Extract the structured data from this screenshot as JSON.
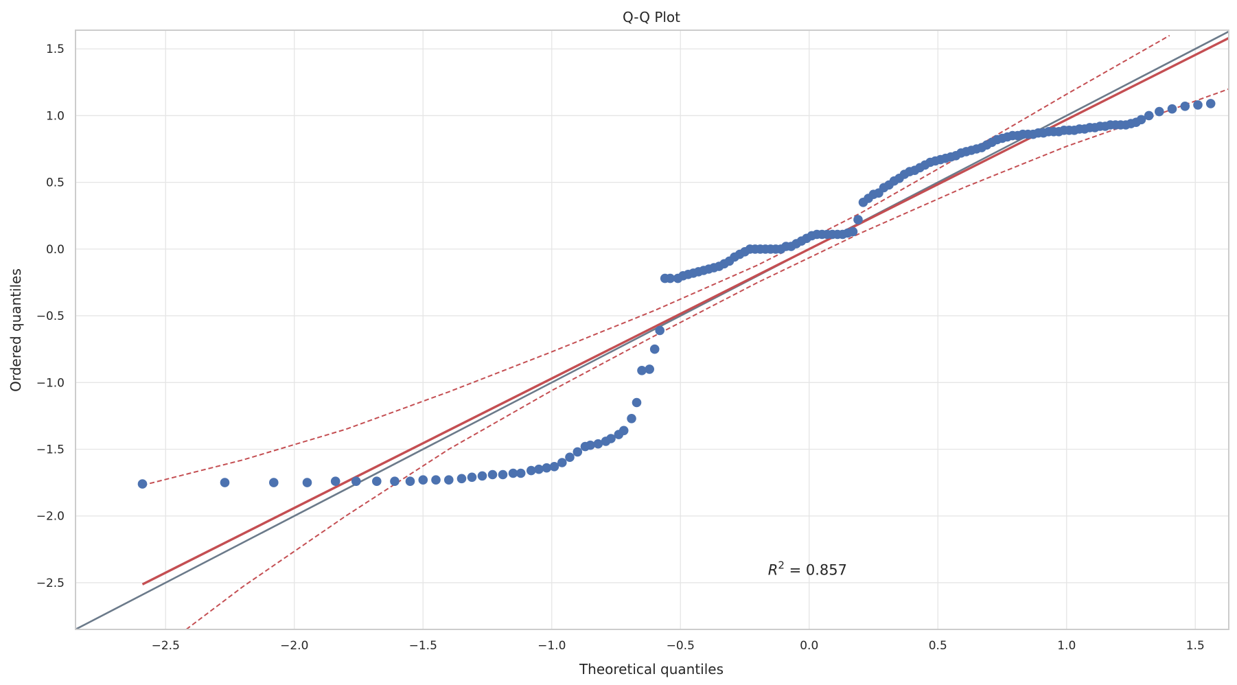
{
  "chart_data": {
    "type": "scatter",
    "title": "Q-Q Plot",
    "xlabel": "Theoretical quantiles",
    "ylabel": "Ordered quantiles",
    "xlim": [
      -2.85,
      1.63
    ],
    "ylim": [
      -2.85,
      1.64
    ],
    "x_ticks": [
      -2.5,
      -2.0,
      -1.5,
      -1.0,
      -0.5,
      0.0,
      0.5,
      1.0,
      1.5
    ],
    "x_tick_labels": [
      "−2.5",
      "−2.0",
      "−1.5",
      "−1.0",
      "−0.5",
      "0.0",
      "0.5",
      "1.0",
      "1.5"
    ],
    "y_ticks": [
      -2.5,
      -2.0,
      -1.5,
      -1.0,
      -0.5,
      0.0,
      0.5,
      1.0,
      1.5
    ],
    "y_tick_labels": [
      "−2.5",
      "−2.0",
      "−1.5",
      "−1.0",
      "−0.5",
      "0.0",
      "0.5",
      "1.0",
      "1.5"
    ],
    "grid": true,
    "annotation": {
      "label": "R",
      "sup": "2",
      "text": " = 0.857",
      "x": -0.16,
      "y": -2.4
    },
    "reference_line": {
      "slope": 1.0,
      "intercept": 0.0,
      "color": "#6b7a8a"
    },
    "fit_line": {
      "slope": 0.97,
      "intercept": 0.0,
      "x_range": [
        -2.59,
        1.63
      ],
      "color": "#c44e52"
    },
    "confidence_band": {
      "color": "#c44e52",
      "upper": [
        [
          -2.59,
          -1.77
        ],
        [
          -2.2,
          -1.58
        ],
        [
          -1.8,
          -1.35
        ],
        [
          -1.4,
          -1.07
        ],
        [
          -1.0,
          -0.77
        ],
        [
          -0.6,
          -0.46
        ],
        [
          -0.2,
          -0.12
        ],
        [
          0.2,
          0.27
        ],
        [
          0.6,
          0.71
        ],
        [
          1.0,
          1.16
        ],
        [
          1.4,
          1.6
        ]
      ],
      "lower": [
        [
          -2.42,
          -2.85
        ],
        [
          -2.2,
          -2.53
        ],
        [
          -1.8,
          -2.0
        ],
        [
          -1.4,
          -1.5
        ],
        [
          -1.0,
          -1.06
        ],
        [
          -0.6,
          -0.65
        ],
        [
          -0.2,
          -0.25
        ],
        [
          0.2,
          0.12
        ],
        [
          0.6,
          0.46
        ],
        [
          1.0,
          0.77
        ],
        [
          1.4,
          1.04
        ],
        [
          1.63,
          1.2
        ]
      ]
    },
    "series": [
      {
        "color": "#4c72b0",
        "points": [
          [
            -2.59,
            -1.76
          ],
          [
            -2.27,
            -1.75
          ],
          [
            -2.08,
            -1.75
          ],
          [
            -1.95,
            -1.75
          ],
          [
            -1.84,
            -1.74
          ],
          [
            -1.76,
            -1.74
          ],
          [
            -1.68,
            -1.74
          ],
          [
            -1.61,
            -1.74
          ],
          [
            -1.55,
            -1.74
          ],
          [
            -1.5,
            -1.73
          ],
          [
            -1.45,
            -1.73
          ],
          [
            -1.4,
            -1.73
          ],
          [
            -1.35,
            -1.72
          ],
          [
            -1.31,
            -1.71
          ],
          [
            -1.27,
            -1.7
          ],
          [
            -1.23,
            -1.69
          ],
          [
            -1.19,
            -1.69
          ],
          [
            -1.15,
            -1.68
          ],
          [
            -1.12,
            -1.68
          ],
          [
            -1.08,
            -1.66
          ],
          [
            -1.05,
            -1.65
          ],
          [
            -1.02,
            -1.64
          ],
          [
            -0.99,
            -1.63
          ],
          [
            -0.96,
            -1.6
          ],
          [
            -0.93,
            -1.56
          ],
          [
            -0.9,
            -1.52
          ],
          [
            -0.87,
            -1.48
          ],
          [
            -0.85,
            -1.47
          ],
          [
            -0.82,
            -1.46
          ],
          [
            -0.79,
            -1.44
          ],
          [
            -0.77,
            -1.42
          ],
          [
            -0.74,
            -1.39
          ],
          [
            -0.72,
            -1.36
          ],
          [
            -0.69,
            -1.27
          ],
          [
            -0.67,
            -1.15
          ],
          [
            -0.65,
            -0.91
          ],
          [
            -0.62,
            -0.9
          ],
          [
            -0.6,
            -0.75
          ],
          [
            -0.58,
            -0.61
          ],
          [
            -0.56,
            -0.22
          ],
          [
            -0.54,
            -0.22
          ],
          [
            -0.51,
            -0.22
          ],
          [
            -0.49,
            -0.2
          ],
          [
            -0.47,
            -0.19
          ],
          [
            -0.45,
            -0.18
          ],
          [
            -0.43,
            -0.17
          ],
          [
            -0.41,
            -0.16
          ],
          [
            -0.39,
            -0.15
          ],
          [
            -0.37,
            -0.14
          ],
          [
            -0.35,
            -0.13
          ],
          [
            -0.33,
            -0.11
          ],
          [
            -0.31,
            -0.09
          ],
          [
            -0.29,
            -0.06
          ],
          [
            -0.27,
            -0.04
          ],
          [
            -0.25,
            -0.02
          ],
          [
            -0.23,
            0.0
          ],
          [
            -0.21,
            0.0
          ],
          [
            -0.19,
            0.0
          ],
          [
            -0.17,
            0.0
          ],
          [
            -0.15,
            0.0
          ],
          [
            -0.13,
            0.0
          ],
          [
            -0.11,
            0.0
          ],
          [
            -0.09,
            0.02
          ],
          [
            -0.07,
            0.02
          ],
          [
            -0.05,
            0.04
          ],
          [
            -0.03,
            0.06
          ],
          [
            -0.01,
            0.08
          ],
          [
            0.01,
            0.1
          ],
          [
            0.03,
            0.11
          ],
          [
            0.05,
            0.11
          ],
          [
            0.07,
            0.11
          ],
          [
            0.09,
            0.11
          ],
          [
            0.11,
            0.11
          ],
          [
            0.13,
            0.11
          ],
          [
            0.15,
            0.12
          ],
          [
            0.17,
            0.13
          ],
          [
            0.19,
            0.22
          ],
          [
            0.21,
            0.35
          ],
          [
            0.23,
            0.38
          ],
          [
            0.25,
            0.41
          ],
          [
            0.27,
            0.42
          ],
          [
            0.29,
            0.46
          ],
          [
            0.31,
            0.48
          ],
          [
            0.33,
            0.51
          ],
          [
            0.35,
            0.53
          ],
          [
            0.37,
            0.56
          ],
          [
            0.39,
            0.58
          ],
          [
            0.41,
            0.59
          ],
          [
            0.43,
            0.61
          ],
          [
            0.45,
            0.63
          ],
          [
            0.47,
            0.65
          ],
          [
            0.49,
            0.66
          ],
          [
            0.51,
            0.67
          ],
          [
            0.53,
            0.68
          ],
          [
            0.55,
            0.69
          ],
          [
            0.57,
            0.7
          ],
          [
            0.59,
            0.72
          ],
          [
            0.61,
            0.73
          ],
          [
            0.63,
            0.74
          ],
          [
            0.65,
            0.75
          ],
          [
            0.67,
            0.76
          ],
          [
            0.69,
            0.78
          ],
          [
            0.71,
            0.8
          ],
          [
            0.73,
            0.82
          ],
          [
            0.75,
            0.83
          ],
          [
            0.77,
            0.84
          ],
          [
            0.79,
            0.85
          ],
          [
            0.81,
            0.85
          ],
          [
            0.83,
            0.86
          ],
          [
            0.85,
            0.86
          ],
          [
            0.87,
            0.86
          ],
          [
            0.89,
            0.87
          ],
          [
            0.91,
            0.87
          ],
          [
            0.93,
            0.88
          ],
          [
            0.95,
            0.88
          ],
          [
            0.97,
            0.88
          ],
          [
            0.99,
            0.89
          ],
          [
            1.01,
            0.89
          ],
          [
            1.03,
            0.89
          ],
          [
            1.05,
            0.9
          ],
          [
            1.07,
            0.9
          ],
          [
            1.09,
            0.91
          ],
          [
            1.11,
            0.91
          ],
          [
            1.13,
            0.92
          ],
          [
            1.15,
            0.92
          ],
          [
            1.17,
            0.93
          ],
          [
            1.19,
            0.93
          ],
          [
            1.21,
            0.93
          ],
          [
            1.23,
            0.93
          ],
          [
            1.25,
            0.94
          ],
          [
            1.27,
            0.95
          ],
          [
            1.29,
            0.97
          ],
          [
            1.32,
            1.0
          ],
          [
            1.36,
            1.03
          ],
          [
            1.41,
            1.05
          ],
          [
            1.46,
            1.07
          ],
          [
            1.51,
            1.08
          ],
          [
            1.56,
            1.09
          ]
        ]
      }
    ]
  }
}
